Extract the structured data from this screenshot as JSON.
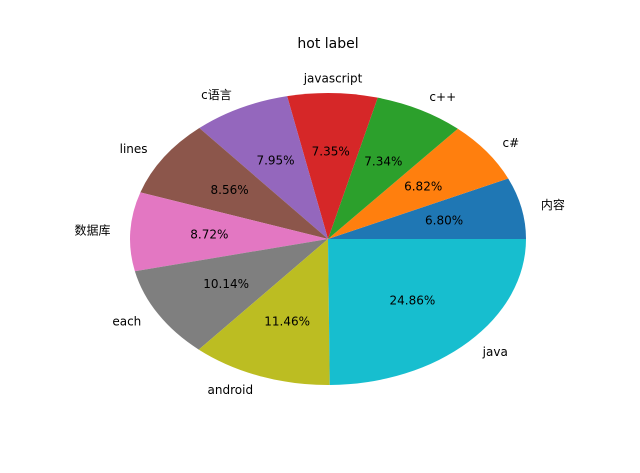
{
  "chart_data": {
    "type": "pie",
    "title": "hot label",
    "slices": [
      {
        "label": "内容",
        "value": 6.8,
        "pct_label": "6.80%",
        "color": "#1f77b4"
      },
      {
        "label": "c#",
        "value": 6.82,
        "pct_label": "6.82%",
        "color": "#ff7f0e"
      },
      {
        "label": "c++",
        "value": 7.34,
        "pct_label": "7.34%",
        "color": "#2ca02c"
      },
      {
        "label": "javascript",
        "value": 7.35,
        "pct_label": "7.35%",
        "color": "#d62728"
      },
      {
        "label": "c语言",
        "value": 7.95,
        "pct_label": "7.95%",
        "color": "#9467bd"
      },
      {
        "label": "lines",
        "value": 8.56,
        "pct_label": "8.56%",
        "color": "#8c564b"
      },
      {
        "label": "数据库",
        "value": 8.72,
        "pct_label": "8.72%",
        "color": "#e377c2"
      },
      {
        "label": "each",
        "value": 10.14,
        "pct_label": "10.14%",
        "color": "#7f7f7f"
      },
      {
        "label": "android",
        "value": 11.46,
        "pct_label": "11.46%",
        "color": "#bcbd22"
      },
      {
        "label": "java",
        "value": 24.86,
        "pct_label": "24.86%",
        "color": "#17becf"
      }
    ],
    "start_angle_deg": 0,
    "direction": "counterclockwise"
  }
}
